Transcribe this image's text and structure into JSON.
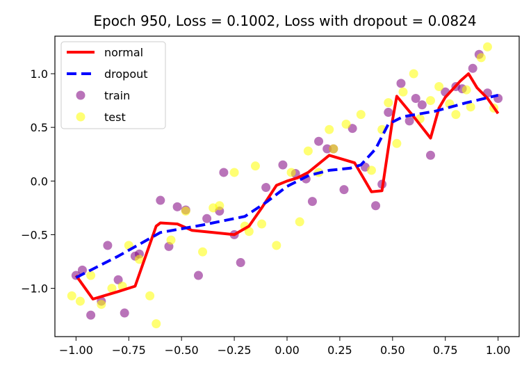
{
  "chart_data": {
    "type": "scatter",
    "title": "Epoch 950, Loss = 0.1002, Loss with dropout = 0.0824",
    "xlabel": "",
    "ylabel": "",
    "xlim": [
      -1.1,
      1.1
    ],
    "ylim": [
      -1.45,
      1.35
    ],
    "xticks": [
      "−1.00",
      "−0.75",
      "−0.50",
      "−0.25",
      "0.00",
      "0.25",
      "0.50",
      "0.75",
      "1.00"
    ],
    "xtick_values": [
      -1.0,
      -0.75,
      -0.5,
      -0.25,
      0.0,
      0.25,
      0.5,
      0.75,
      1.0
    ],
    "yticks": [
      "−1.0",
      "−0.5",
      "0.0",
      "0.5",
      "1.0"
    ],
    "ytick_values": [
      -1.0,
      -0.5,
      0.0,
      0.5,
      1.0
    ],
    "grid": false,
    "legend_position": "top-left",
    "series": [
      {
        "name": "normal",
        "kind": "line",
        "color": "#ff0000",
        "dash": "solid",
        "points": [
          [
            -1.0,
            -0.88
          ],
          [
            -0.92,
            -1.1
          ],
          [
            -0.8,
            -1.03
          ],
          [
            -0.72,
            -0.98
          ],
          [
            -0.62,
            -0.42
          ],
          [
            -0.6,
            -0.39
          ],
          [
            -0.52,
            -0.4
          ],
          [
            -0.45,
            -0.46
          ],
          [
            -0.35,
            -0.48
          ],
          [
            -0.25,
            -0.5
          ],
          [
            -0.18,
            -0.42
          ],
          [
            -0.12,
            -0.25
          ],
          [
            -0.05,
            -0.04
          ],
          [
            0.0,
            0.0
          ],
          [
            0.05,
            0.03
          ],
          [
            0.1,
            0.08
          ],
          [
            0.2,
            0.24
          ],
          [
            0.32,
            0.17
          ],
          [
            0.4,
            -0.1
          ],
          [
            0.45,
            -0.09
          ],
          [
            0.5,
            0.57
          ],
          [
            0.52,
            0.79
          ],
          [
            0.6,
            0.6
          ],
          [
            0.68,
            0.4
          ],
          [
            0.72,
            0.68
          ],
          [
            0.75,
            0.78
          ],
          [
            0.82,
            0.93
          ],
          [
            0.86,
            1.0
          ],
          [
            0.9,
            0.87
          ],
          [
            0.95,
            0.77
          ],
          [
            1.0,
            0.63
          ]
        ]
      },
      {
        "name": "dropout",
        "kind": "line",
        "color": "#0000ff",
        "dash": "dashed",
        "points": [
          [
            -1.0,
            -0.9
          ],
          [
            -0.8,
            -0.7
          ],
          [
            -0.6,
            -0.48
          ],
          [
            -0.4,
            -0.41
          ],
          [
            -0.2,
            -0.33
          ],
          [
            -0.1,
            -0.2
          ],
          [
            0.0,
            -0.05
          ],
          [
            0.1,
            0.05
          ],
          [
            0.2,
            0.1
          ],
          [
            0.3,
            0.12
          ],
          [
            0.35,
            0.15
          ],
          [
            0.42,
            0.3
          ],
          [
            0.48,
            0.53
          ],
          [
            0.55,
            0.6
          ],
          [
            0.7,
            0.65
          ],
          [
            0.85,
            0.73
          ],
          [
            1.0,
            0.8
          ]
        ]
      },
      {
        "name": "train",
        "kind": "scatter",
        "color": "#800080",
        "opacity": 0.55,
        "points": [
          [
            -1.0,
            -0.88
          ],
          [
            -0.97,
            -0.83
          ],
          [
            -0.93,
            -1.25
          ],
          [
            -0.88,
            -1.12
          ],
          [
            -0.85,
            -0.6
          ],
          [
            -0.8,
            -0.92
          ],
          [
            -0.77,
            -1.23
          ],
          [
            -0.72,
            -0.7
          ],
          [
            -0.7,
            -0.68
          ],
          [
            -0.6,
            -0.18
          ],
          [
            -0.56,
            -0.61
          ],
          [
            -0.52,
            -0.24
          ],
          [
            -0.48,
            -0.27
          ],
          [
            -0.42,
            -0.88
          ],
          [
            -0.38,
            -0.35
          ],
          [
            -0.32,
            -0.28
          ],
          [
            -0.3,
            0.08
          ],
          [
            -0.25,
            -0.5
          ],
          [
            -0.22,
            -0.76
          ],
          [
            -0.1,
            -0.06
          ],
          [
            -0.02,
            0.15
          ],
          [
            0.04,
            0.07
          ],
          [
            0.09,
            0.02
          ],
          [
            0.12,
            -0.19
          ],
          [
            0.15,
            0.37
          ],
          [
            0.19,
            0.3
          ],
          [
            0.22,
            0.3
          ],
          [
            0.27,
            -0.08
          ],
          [
            0.31,
            0.49
          ],
          [
            0.37,
            0.13
          ],
          [
            0.42,
            -0.23
          ],
          [
            0.45,
            -0.03
          ],
          [
            0.48,
            0.64
          ],
          [
            0.54,
            0.91
          ],
          [
            0.58,
            0.56
          ],
          [
            0.61,
            0.77
          ],
          [
            0.64,
            0.71
          ],
          [
            0.68,
            0.24
          ],
          [
            0.75,
            0.83
          ],
          [
            0.8,
            0.88
          ],
          [
            0.83,
            0.86
          ],
          [
            0.88,
            1.05
          ],
          [
            0.91,
            1.18
          ],
          [
            0.95,
            0.82
          ],
          [
            1.0,
            0.77
          ]
        ]
      },
      {
        "name": "test",
        "kind": "scatter",
        "color": "#ffff00",
        "opacity": 0.55,
        "points": [
          [
            -1.02,
            -1.07
          ],
          [
            -0.98,
            -1.12
          ],
          [
            -0.93,
            -0.88
          ],
          [
            -0.88,
            -1.15
          ],
          [
            -0.83,
            -1.0
          ],
          [
            -0.78,
            -0.98
          ],
          [
            -0.75,
            -0.6
          ],
          [
            -0.7,
            -0.73
          ],
          [
            -0.65,
            -1.07
          ],
          [
            -0.62,
            -1.33
          ],
          [
            -0.55,
            -0.55
          ],
          [
            -0.48,
            -0.28
          ],
          [
            -0.4,
            -0.66
          ],
          [
            -0.35,
            -0.25
          ],
          [
            -0.32,
            -0.23
          ],
          [
            -0.25,
            0.08
          ],
          [
            -0.2,
            -0.42
          ],
          [
            -0.18,
            -0.47
          ],
          [
            -0.15,
            0.14
          ],
          [
            -0.12,
            -0.4
          ],
          [
            -0.05,
            -0.6
          ],
          [
            0.02,
            0.08
          ],
          [
            0.06,
            -0.38
          ],
          [
            0.1,
            0.28
          ],
          [
            0.15,
            0.08
          ],
          [
            0.2,
            0.48
          ],
          [
            0.22,
            0.3
          ],
          [
            0.28,
            0.53
          ],
          [
            0.35,
            0.62
          ],
          [
            0.4,
            0.1
          ],
          [
            0.45,
            0.48
          ],
          [
            0.48,
            0.73
          ],
          [
            0.52,
            0.35
          ],
          [
            0.55,
            0.83
          ],
          [
            0.6,
            1.0
          ],
          [
            0.63,
            0.58
          ],
          [
            0.68,
            0.75
          ],
          [
            0.72,
            0.88
          ],
          [
            0.77,
            0.72
          ],
          [
            0.8,
            0.62
          ],
          [
            0.85,
            0.85
          ],
          [
            0.87,
            0.69
          ],
          [
            0.92,
            1.15
          ],
          [
            0.95,
            1.25
          ],
          [
            0.98,
            0.68
          ]
        ]
      }
    ]
  }
}
